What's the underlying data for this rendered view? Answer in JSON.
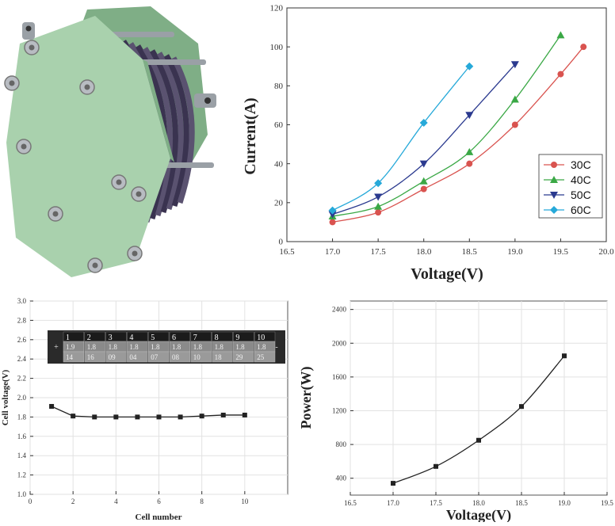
{
  "photo": {
    "subject": "electrolyzer-stack",
    "colors": {
      "plate": "#a9d1ad",
      "plate_dark": "#7fae86",
      "cells": "#3a3350",
      "rod": "#9aa0a6",
      "nut": "#b8bcc2"
    }
  },
  "charts": [
    {
      "type": "line",
      "xlabel": "Voltage(V)",
      "ylabel": "Current(A)",
      "xlim": [
        16.5,
        20.0
      ],
      "ylim": [
        0,
        120
      ],
      "xticks": [
        "16.5",
        "17.0",
        "17.5",
        "18.0",
        "18.5",
        "19.0",
        "19.5",
        "20.0"
      ],
      "yticks": [
        "0",
        "20",
        "40",
        "60",
        "80",
        "100",
        "120"
      ],
      "legend_position": "bottom-right",
      "grid": false,
      "series": [
        {
          "name": "30C",
          "color": "#d9534f",
          "marker": "circle",
          "x": [
            17.0,
            17.5,
            18.0,
            18.5,
            19.0,
            19.5,
            19.75
          ],
          "y": [
            10,
            15,
            27,
            40,
            60,
            86,
            100
          ]
        },
        {
          "name": "40C",
          "color": "#3aa845",
          "marker": "triangle-up",
          "x": [
            17.0,
            17.5,
            18.0,
            18.5,
            19.0,
            19.5
          ],
          "y": [
            13,
            18,
            31,
            46,
            73,
            106
          ]
        },
        {
          "name": "50C",
          "color": "#2b3a8f",
          "marker": "triangle-down",
          "x": [
            17.0,
            17.5,
            18.0,
            18.5,
            19.0
          ],
          "y": [
            14,
            23,
            40,
            65,
            91
          ]
        },
        {
          "name": "60C",
          "color": "#26a9d9",
          "marker": "diamond",
          "x": [
            17.0,
            17.5,
            18.0,
            18.5
          ],
          "y": [
            16,
            30,
            61,
            90
          ]
        }
      ]
    },
    {
      "type": "line",
      "xlabel": "Cell number",
      "ylabel": "Cell voltage(V)",
      "xlim": [
        0,
        12
      ],
      "ylim": [
        1.0,
        3.0
      ],
      "xticks": [
        "0",
        "2",
        "4",
        "6",
        "8",
        "10"
      ],
      "yticks": [
        "1.0",
        "1.2",
        "1.4",
        "1.6",
        "1.8",
        "2.0",
        "2.2",
        "2.4",
        "2.6",
        "2.8",
        "3.0"
      ],
      "grid": true,
      "series": [
        {
          "color": "#222222",
          "marker": "square",
          "x": [
            1,
            2,
            3,
            4,
            5,
            6,
            7,
            8,
            9,
            10
          ],
          "y": [
            1.91,
            1.81,
            1.8,
            1.8,
            1.8,
            1.8,
            1.8,
            1.81,
            1.82,
            1.82
          ]
        }
      ],
      "inset": {
        "plus": "+",
        "minus": "-",
        "headers": [
          "1",
          "2",
          "3",
          "4",
          "5",
          "6",
          "7",
          "8",
          "9",
          "10"
        ],
        "row1": [
          "1.9",
          "1.8",
          "1.8",
          "1.8",
          "1.8",
          "1.8",
          "1.8",
          "1.8",
          "1.8",
          "1.8"
        ],
        "row2": [
          "14",
          "16",
          "09",
          "04",
          "07",
          "08",
          "10",
          "18",
          "29",
          "25"
        ]
      }
    },
    {
      "type": "line",
      "xlabel": "Voltage(V)",
      "ylabel": "Power(W)",
      "xlim": [
        16.5,
        19.5
      ],
      "ylim": [
        200,
        2500
      ],
      "xticks": [
        "16.5",
        "17.0",
        "17.5",
        "18.0",
        "18.5",
        "19.0",
        "19.5"
      ],
      "yticks": [
        "400",
        "800",
        "1200",
        "1600",
        "2000",
        "2400"
      ],
      "grid": true,
      "series": [
        {
          "color": "#222222",
          "marker": "square",
          "x": [
            17.0,
            17.5,
            18.0,
            18.5,
            19.0
          ],
          "y": [
            340,
            540,
            850,
            1250,
            1850
          ]
        }
      ]
    }
  ]
}
